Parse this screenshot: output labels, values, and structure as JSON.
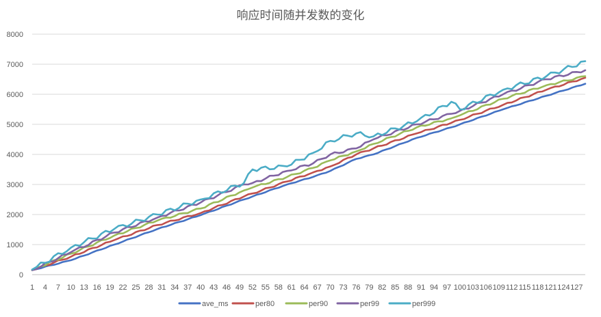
{
  "chart_data": {
    "type": "line",
    "title": "响应时间随并发数的变化",
    "xlabel": "",
    "ylabel": "",
    "x_range": [
      1,
      129
    ],
    "x_tick_labels": [
      "1",
      "4",
      "7",
      "10",
      "13",
      "16",
      "19",
      "22",
      "25",
      "28",
      "31",
      "34",
      "37",
      "40",
      "43",
      "46",
      "49",
      "52",
      "55",
      "58",
      "61",
      "64",
      "67",
      "70",
      "73",
      "76",
      "79",
      "82",
      "85",
      "88",
      "91",
      "94",
      "97",
      "100",
      "103",
      "106",
      "109",
      "112",
      "115",
      "118",
      "121",
      "124",
      "127"
    ],
    "ylim": [
      0,
      8000
    ],
    "y_ticks": [
      0,
      1000,
      2000,
      3000,
      4000,
      5000,
      6000,
      7000,
      8000
    ],
    "grid": true,
    "legend_position": "bottom",
    "series_names": [
      "ave_ms",
      "per80",
      "per90",
      "per99",
      "per999"
    ],
    "series_colors": [
      "#4472c4",
      "#c0504d",
      "#9bbb59",
      "#8064a2",
      "#4bacc6"
    ],
    "sample_points": [
      {
        "x": 1,
        "ave_ms": 150,
        "per80": 150,
        "per90": 150,
        "per99": 150,
        "per999": 170
      },
      {
        "x": 10,
        "ave_ms": 480,
        "per80": 600,
        "per90": 700,
        "per99": 750,
        "per999": 900
      },
      {
        "x": 20,
        "ave_ms": 1000,
        "per80": 1150,
        "per90": 1300,
        "per99": 1400,
        "per999": 1520
      },
      {
        "x": 30,
        "ave_ms": 1520,
        "per80": 1650,
        "per90": 1800,
        "per99": 1900,
        "per999": 2000
      },
      {
        "x": 40,
        "ave_ms": 1980,
        "per80": 2050,
        "per90": 2200,
        "per99": 2400,
        "per999": 2500
      },
      {
        "x": 50,
        "ave_ms": 2500,
        "per80": 2600,
        "per90": 2800,
        "per99": 3000,
        "per999": 3050
      },
      {
        "x": 52,
        "ave_ms": 2600,
        "per80": 2700,
        "per90": 2900,
        "per99": 3050,
        "per999": 3500
      },
      {
        "x": 60,
        "ave_ms": 3000,
        "per80": 3100,
        "per90": 3250,
        "per99": 3450,
        "per999": 3600
      },
      {
        "x": 66,
        "ave_ms": 3250,
        "per80": 3400,
        "per90": 3550,
        "per99": 3700,
        "per999": 4050
      },
      {
        "x": 70,
        "ave_ms": 3450,
        "per80": 3600,
        "per90": 3800,
        "per99": 4000,
        "per999": 4450
      },
      {
        "x": 76,
        "ave_ms": 3850,
        "per80": 4000,
        "per90": 4100,
        "per99": 4200,
        "per999": 4700
      },
      {
        "x": 80,
        "ave_ms": 4000,
        "per80": 4200,
        "per90": 4350,
        "per99": 4500,
        "per999": 4600
      },
      {
        "x": 90,
        "ave_ms": 4550,
        "per80": 4700,
        "per90": 4900,
        "per99": 5000,
        "per999": 5100
      },
      {
        "x": 98,
        "ave_ms": 4900,
        "per80": 5050,
        "per90": 5200,
        "per99": 5350,
        "per999": 5750
      },
      {
        "x": 100,
        "ave_ms": 5000,
        "per80": 5150,
        "per90": 5300,
        "per99": 5450,
        "per999": 5500
      },
      {
        "x": 110,
        "ave_ms": 5500,
        "per80": 5650,
        "per90": 5850,
        "per99": 6000,
        "per999": 6150
      },
      {
        "x": 120,
        "ave_ms": 5950,
        "per80": 6150,
        "per90": 6300,
        "per99": 6500,
        "per999": 6600
      },
      {
        "x": 129,
        "ave_ms": 6350,
        "per80": 6550,
        "per90": 6600,
        "per99": 6800,
        "per999": 7100
      }
    ]
  }
}
